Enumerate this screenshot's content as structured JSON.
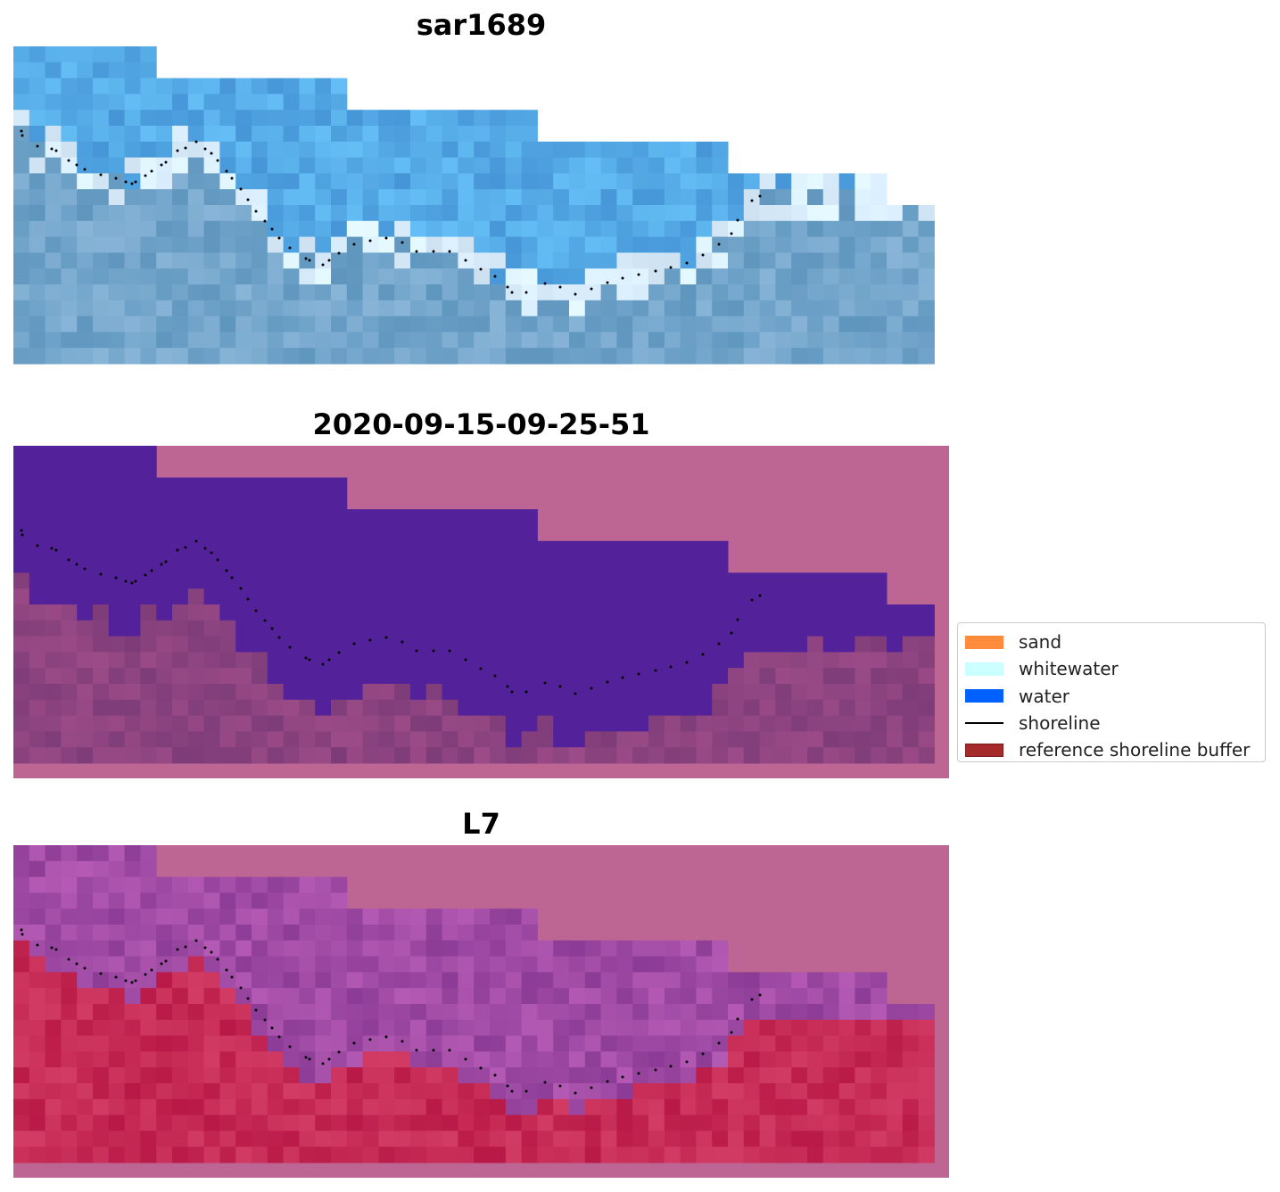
{
  "panels": [
    {
      "title": "sar1689",
      "style": "rgb"
    },
    {
      "title": "2020-09-15-09-25-51",
      "style": "classified"
    },
    {
      "title": "L7",
      "style": "index"
    }
  ],
  "legend": {
    "items": [
      {
        "label": "sand",
        "color": "#ff8c3c",
        "kind": "patch"
      },
      {
        "label": "whitewater",
        "color": "#ccffff",
        "kind": "patch"
      },
      {
        "label": "water",
        "color": "#0061ff",
        "kind": "patch"
      },
      {
        "label": "shoreline",
        "color": "#000000",
        "kind": "line"
      },
      {
        "label": "reference shoreline buffer",
        "color": "#a52a2a",
        "kind": "patch"
      }
    ]
  },
  "colors": {
    "nodata_background": "#bd6694",
    "shoreline_dots": "#000000"
  }
}
